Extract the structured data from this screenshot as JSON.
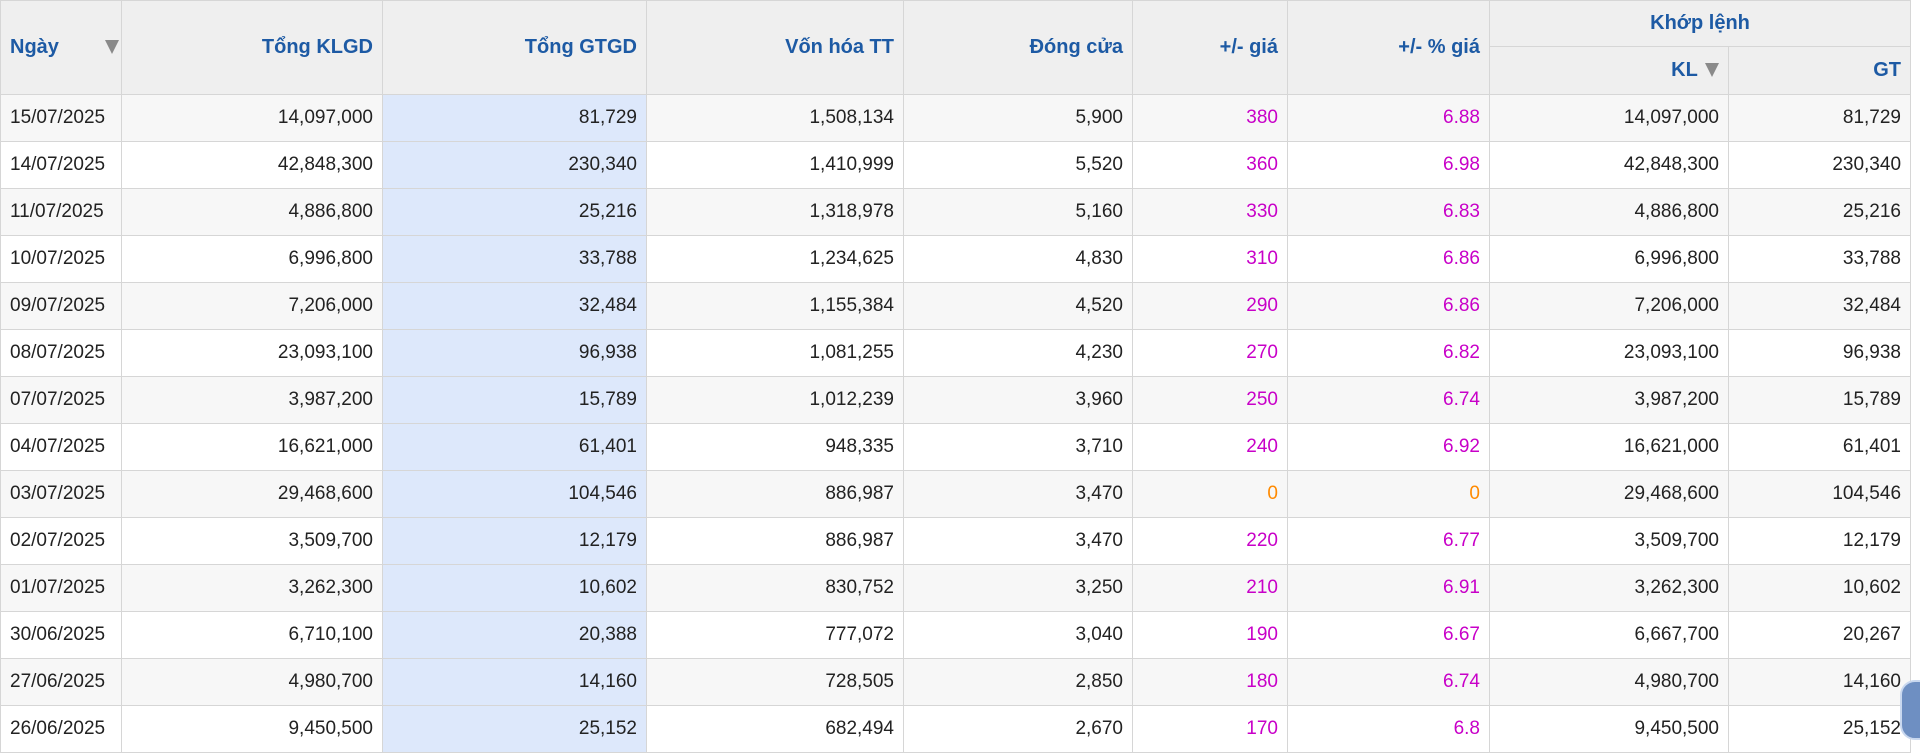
{
  "table": {
    "headers": {
      "date": "Ngày",
      "total_volume": "Tổng KLGD",
      "total_value": "Tổng GTGD",
      "market_cap": "Vốn hóa TT",
      "close": "Đóng cửa",
      "change": "+/- giá",
      "change_pct": "+/- % giá",
      "matched_group": "Khớp lệnh",
      "matched_volume": "KL",
      "matched_value": "GT"
    },
    "rows": [
      {
        "date": "15/07/2025",
        "total_volume": "14,097,000",
        "total_value": "81,729",
        "market_cap": "1,508,134",
        "close": "5,900",
        "change": "380",
        "change_pct": "6.88",
        "matched_volume": "14,097,000",
        "matched_value": "81,729"
      },
      {
        "date": "14/07/2025",
        "total_volume": "42,848,300",
        "total_value": "230,340",
        "market_cap": "1,410,999",
        "close": "5,520",
        "change": "360",
        "change_pct": "6.98",
        "matched_volume": "42,848,300",
        "matched_value": "230,340"
      },
      {
        "date": "11/07/2025",
        "total_volume": "4,886,800",
        "total_value": "25,216",
        "market_cap": "1,318,978",
        "close": "5,160",
        "change": "330",
        "change_pct": "6.83",
        "matched_volume": "4,886,800",
        "matched_value": "25,216"
      },
      {
        "date": "10/07/2025",
        "total_volume": "6,996,800",
        "total_value": "33,788",
        "market_cap": "1,234,625",
        "close": "4,830",
        "change": "310",
        "change_pct": "6.86",
        "matched_volume": "6,996,800",
        "matched_value": "33,788"
      },
      {
        "date": "09/07/2025",
        "total_volume": "7,206,000",
        "total_value": "32,484",
        "market_cap": "1,155,384",
        "close": "4,520",
        "change": "290",
        "change_pct": "6.86",
        "matched_volume": "7,206,000",
        "matched_value": "32,484"
      },
      {
        "date": "08/07/2025",
        "total_volume": "23,093,100",
        "total_value": "96,938",
        "market_cap": "1,081,255",
        "close": "4,230",
        "change": "270",
        "change_pct": "6.82",
        "matched_volume": "23,093,100",
        "matched_value": "96,938"
      },
      {
        "date": "07/07/2025",
        "total_volume": "3,987,200",
        "total_value": "15,789",
        "market_cap": "1,012,239",
        "close": "3,960",
        "change": "250",
        "change_pct": "6.74",
        "matched_volume": "3,987,200",
        "matched_value": "15,789"
      },
      {
        "date": "04/07/2025",
        "total_volume": "16,621,000",
        "total_value": "61,401",
        "market_cap": "948,335",
        "close": "3,710",
        "change": "240",
        "change_pct": "6.92",
        "matched_volume": "16,621,000",
        "matched_value": "61,401"
      },
      {
        "date": "03/07/2025",
        "total_volume": "29,468,600",
        "total_value": "104,546",
        "market_cap": "886,987",
        "close": "3,470",
        "change": "0",
        "change_pct": "0",
        "matched_volume": "29,468,600",
        "matched_value": "104,546"
      },
      {
        "date": "02/07/2025",
        "total_volume": "3,509,700",
        "total_value": "12,179",
        "market_cap": "886,987",
        "close": "3,470",
        "change": "220",
        "change_pct": "6.77",
        "matched_volume": "3,509,700",
        "matched_value": "12,179"
      },
      {
        "date": "01/07/2025",
        "total_volume": "3,262,300",
        "total_value": "10,602",
        "market_cap": "830,752",
        "close": "3,250",
        "change": "210",
        "change_pct": "6.91",
        "matched_volume": "3,262,300",
        "matched_value": "10,602"
      },
      {
        "date": "30/06/2025",
        "total_volume": "6,710,100",
        "total_value": "20,388",
        "market_cap": "777,072",
        "close": "3,040",
        "change": "190",
        "change_pct": "6.67",
        "matched_volume": "6,667,700",
        "matched_value": "20,267"
      },
      {
        "date": "27/06/2025",
        "total_volume": "4,980,700",
        "total_value": "14,160",
        "market_cap": "728,505",
        "close": "2,850",
        "change": "180",
        "change_pct": "6.74",
        "matched_volume": "4,980,700",
        "matched_value": "14,160"
      },
      {
        "date": "26/06/2025",
        "total_volume": "9,450,500",
        "total_value": "25,152",
        "market_cap": "682,494",
        "close": "2,670",
        "change": "170",
        "change_pct": "6.8",
        "matched_volume": "9,450,500",
        "matched_value": "25,152"
      }
    ]
  },
  "colors": {
    "header_text": "#1d5aa4",
    "header_bg": "#efefef",
    "highlight_column_bg": "#dde8fb",
    "price_up": "#c800c8",
    "price_reference": "#ff8a00"
  },
  "icons": {
    "sort": "sort-descending-icon",
    "widget": "floating-help-widget"
  }
}
